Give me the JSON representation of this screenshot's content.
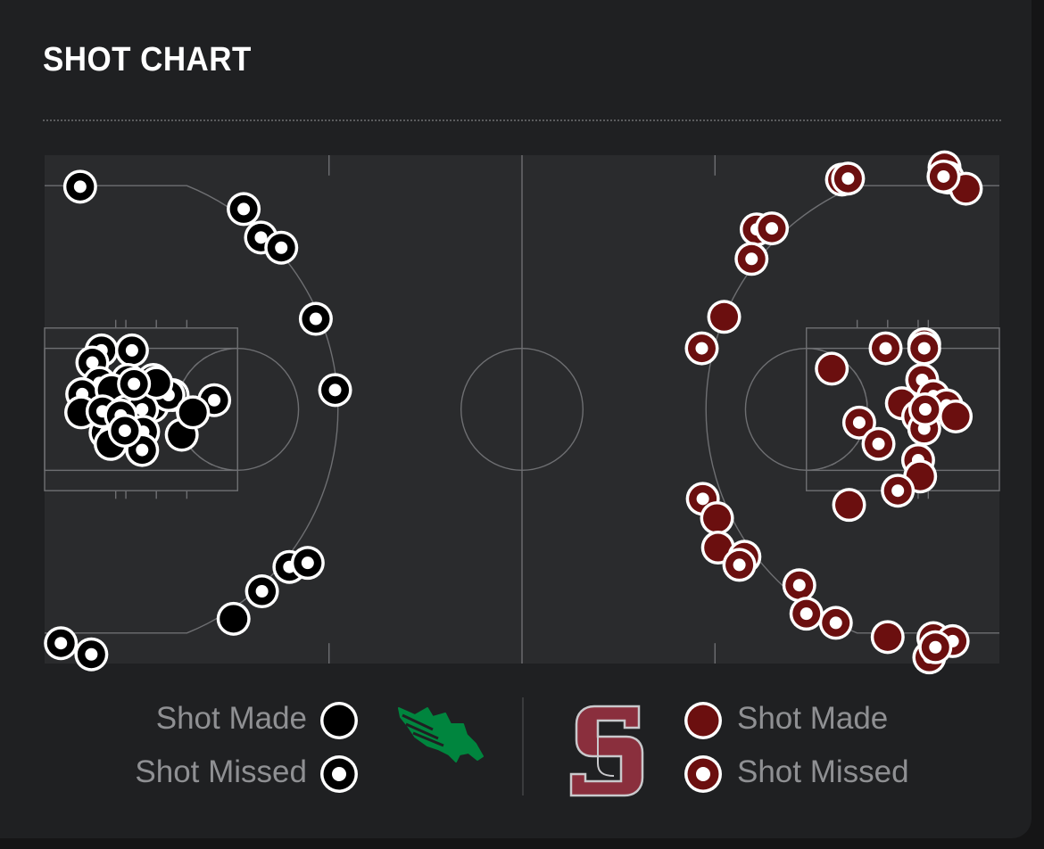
{
  "header": {
    "title": "SHOT CHART"
  },
  "colors": {
    "background": "#1f2022",
    "court": "#2a2b2d",
    "court_lines": "#6e6f72",
    "home_made": "#000000",
    "home_outline": "#ffffff",
    "away_made": "#6b0f0f",
    "away_outline": "#ffffff",
    "home_logo": "#00853e",
    "away_logo": "#8a2f3d"
  },
  "legend": {
    "home": {
      "made_label": "Shot Made",
      "missed_label": "Shot Missed",
      "logo_icon": "eagle-logo-icon"
    },
    "away": {
      "made_label": "Shot Made",
      "missed_label": "Shot Missed",
      "logo_icon": "sc-monogram-logo-icon"
    }
  },
  "chart_data": {
    "type": "scatter",
    "title": "SHOT CHART",
    "xlabel": "",
    "ylabel": "",
    "xlim": [
      0,
      94
    ],
    "ylim": [
      0,
      50
    ],
    "grid": false,
    "legend_position": "bottom",
    "series": [
      {
        "team": "home",
        "points": [
          [
            3.5,
            3.1,
            false
          ],
          [
            19.6,
            5.3,
            false
          ],
          [
            21.3,
            8.1,
            false
          ],
          [
            23.3,
            9.1,
            false
          ],
          [
            26.7,
            16.1,
            false
          ],
          [
            28.6,
            23.1,
            false
          ],
          [
            5.6,
            19.2,
            false
          ],
          [
            8.6,
            19.2,
            false
          ],
          [
            4.7,
            20.4,
            false
          ],
          [
            5.4,
            22.4,
            false
          ],
          [
            8.2,
            22.1,
            false
          ],
          [
            10.7,
            22.1,
            true
          ],
          [
            6.6,
            23.1,
            false
          ],
          [
            9.1,
            23.3,
            false
          ],
          [
            10.3,
            24.1,
            false
          ],
          [
            12.6,
            23.6,
            false
          ],
          [
            16.7,
            24.1,
            false
          ],
          [
            3.7,
            23.5,
            false
          ],
          [
            3.6,
            25.3,
            true
          ],
          [
            6.6,
            23.1,
            true
          ],
          [
            10.6,
            24.7,
            false
          ],
          [
            12.2,
            23.6,
            false
          ],
          [
            14.6,
            25.3,
            false
          ],
          [
            6.0,
            27.3,
            false
          ],
          [
            8.3,
            26.9,
            false
          ],
          [
            5.7,
            25.2,
            false
          ],
          [
            8.0,
            25.2,
            false
          ],
          [
            9.6,
            25.0,
            false
          ],
          [
            6.5,
            28.4,
            true
          ],
          [
            9.7,
            27.2,
            false
          ],
          [
            13.5,
            27.5,
            true
          ],
          [
            14.6,
            25.3,
            true
          ],
          [
            9.6,
            29.0,
            false
          ],
          [
            24.1,
            40.5,
            false
          ],
          [
            25.9,
            40.1,
            false
          ],
          [
            21.4,
            42.9,
            false
          ],
          [
            18.6,
            45.6,
            true
          ],
          [
            1.6,
            48.0,
            false
          ],
          [
            4.6,
            49.1,
            false
          ],
          [
            11.0,
            22.4,
            true
          ],
          [
            7.5,
            25.6,
            false
          ],
          [
            8.8,
            22.5,
            false
          ],
          [
            7.9,
            27.1,
            false
          ]
        ]
      },
      {
        "team": "away",
        "points": [
          [
            78.5,
            2.4,
            false
          ],
          [
            79.1,
            2.3,
            false
          ],
          [
            88.6,
            1.2,
            false
          ],
          [
            88.9,
            2.2,
            false
          ],
          [
            90.7,
            3.3,
            true
          ],
          [
            88.5,
            2.1,
            false
          ],
          [
            70.1,
            7.3,
            false
          ],
          [
            71.6,
            7.2,
            false
          ],
          [
            69.6,
            10.2,
            false
          ],
          [
            66.9,
            15.9,
            true
          ],
          [
            64.7,
            19.0,
            false
          ],
          [
            77.5,
            21.0,
            true
          ],
          [
            82.8,
            19.0,
            false
          ],
          [
            86.6,
            18.6,
            false
          ],
          [
            86.6,
            19.0,
            false
          ],
          [
            86.4,
            22.1,
            false
          ],
          [
            87.5,
            23.7,
            false
          ],
          [
            88.8,
            24.6,
            false
          ],
          [
            84.4,
            24.4,
            true
          ],
          [
            86.0,
            25.7,
            true
          ],
          [
            89.7,
            25.7,
            true
          ],
          [
            80.2,
            26.3,
            false
          ],
          [
            82.1,
            28.4,
            false
          ],
          [
            86.6,
            26.9,
            false
          ],
          [
            86.0,
            30.0,
            false
          ],
          [
            86.2,
            31.6,
            true
          ],
          [
            84.0,
            33.0,
            false
          ],
          [
            79.2,
            34.4,
            true
          ],
          [
            64.8,
            33.8,
            false
          ],
          [
            66.2,
            35.7,
            true
          ],
          [
            66.3,
            38.6,
            true
          ],
          [
            68.9,
            39.5,
            false
          ],
          [
            68.4,
            40.3,
            false
          ],
          [
            74.3,
            42.3,
            false
          ],
          [
            75.0,
            45.1,
            false
          ],
          [
            77.9,
            46.0,
            false
          ],
          [
            83.0,
            47.4,
            true
          ],
          [
            87.5,
            47.5,
            false
          ],
          [
            89.4,
            47.8,
            false
          ],
          [
            87.1,
            49.4,
            false
          ],
          [
            87.7,
            48.4,
            false
          ],
          [
            86.7,
            25.0,
            false
          ]
        ]
      }
    ]
  }
}
